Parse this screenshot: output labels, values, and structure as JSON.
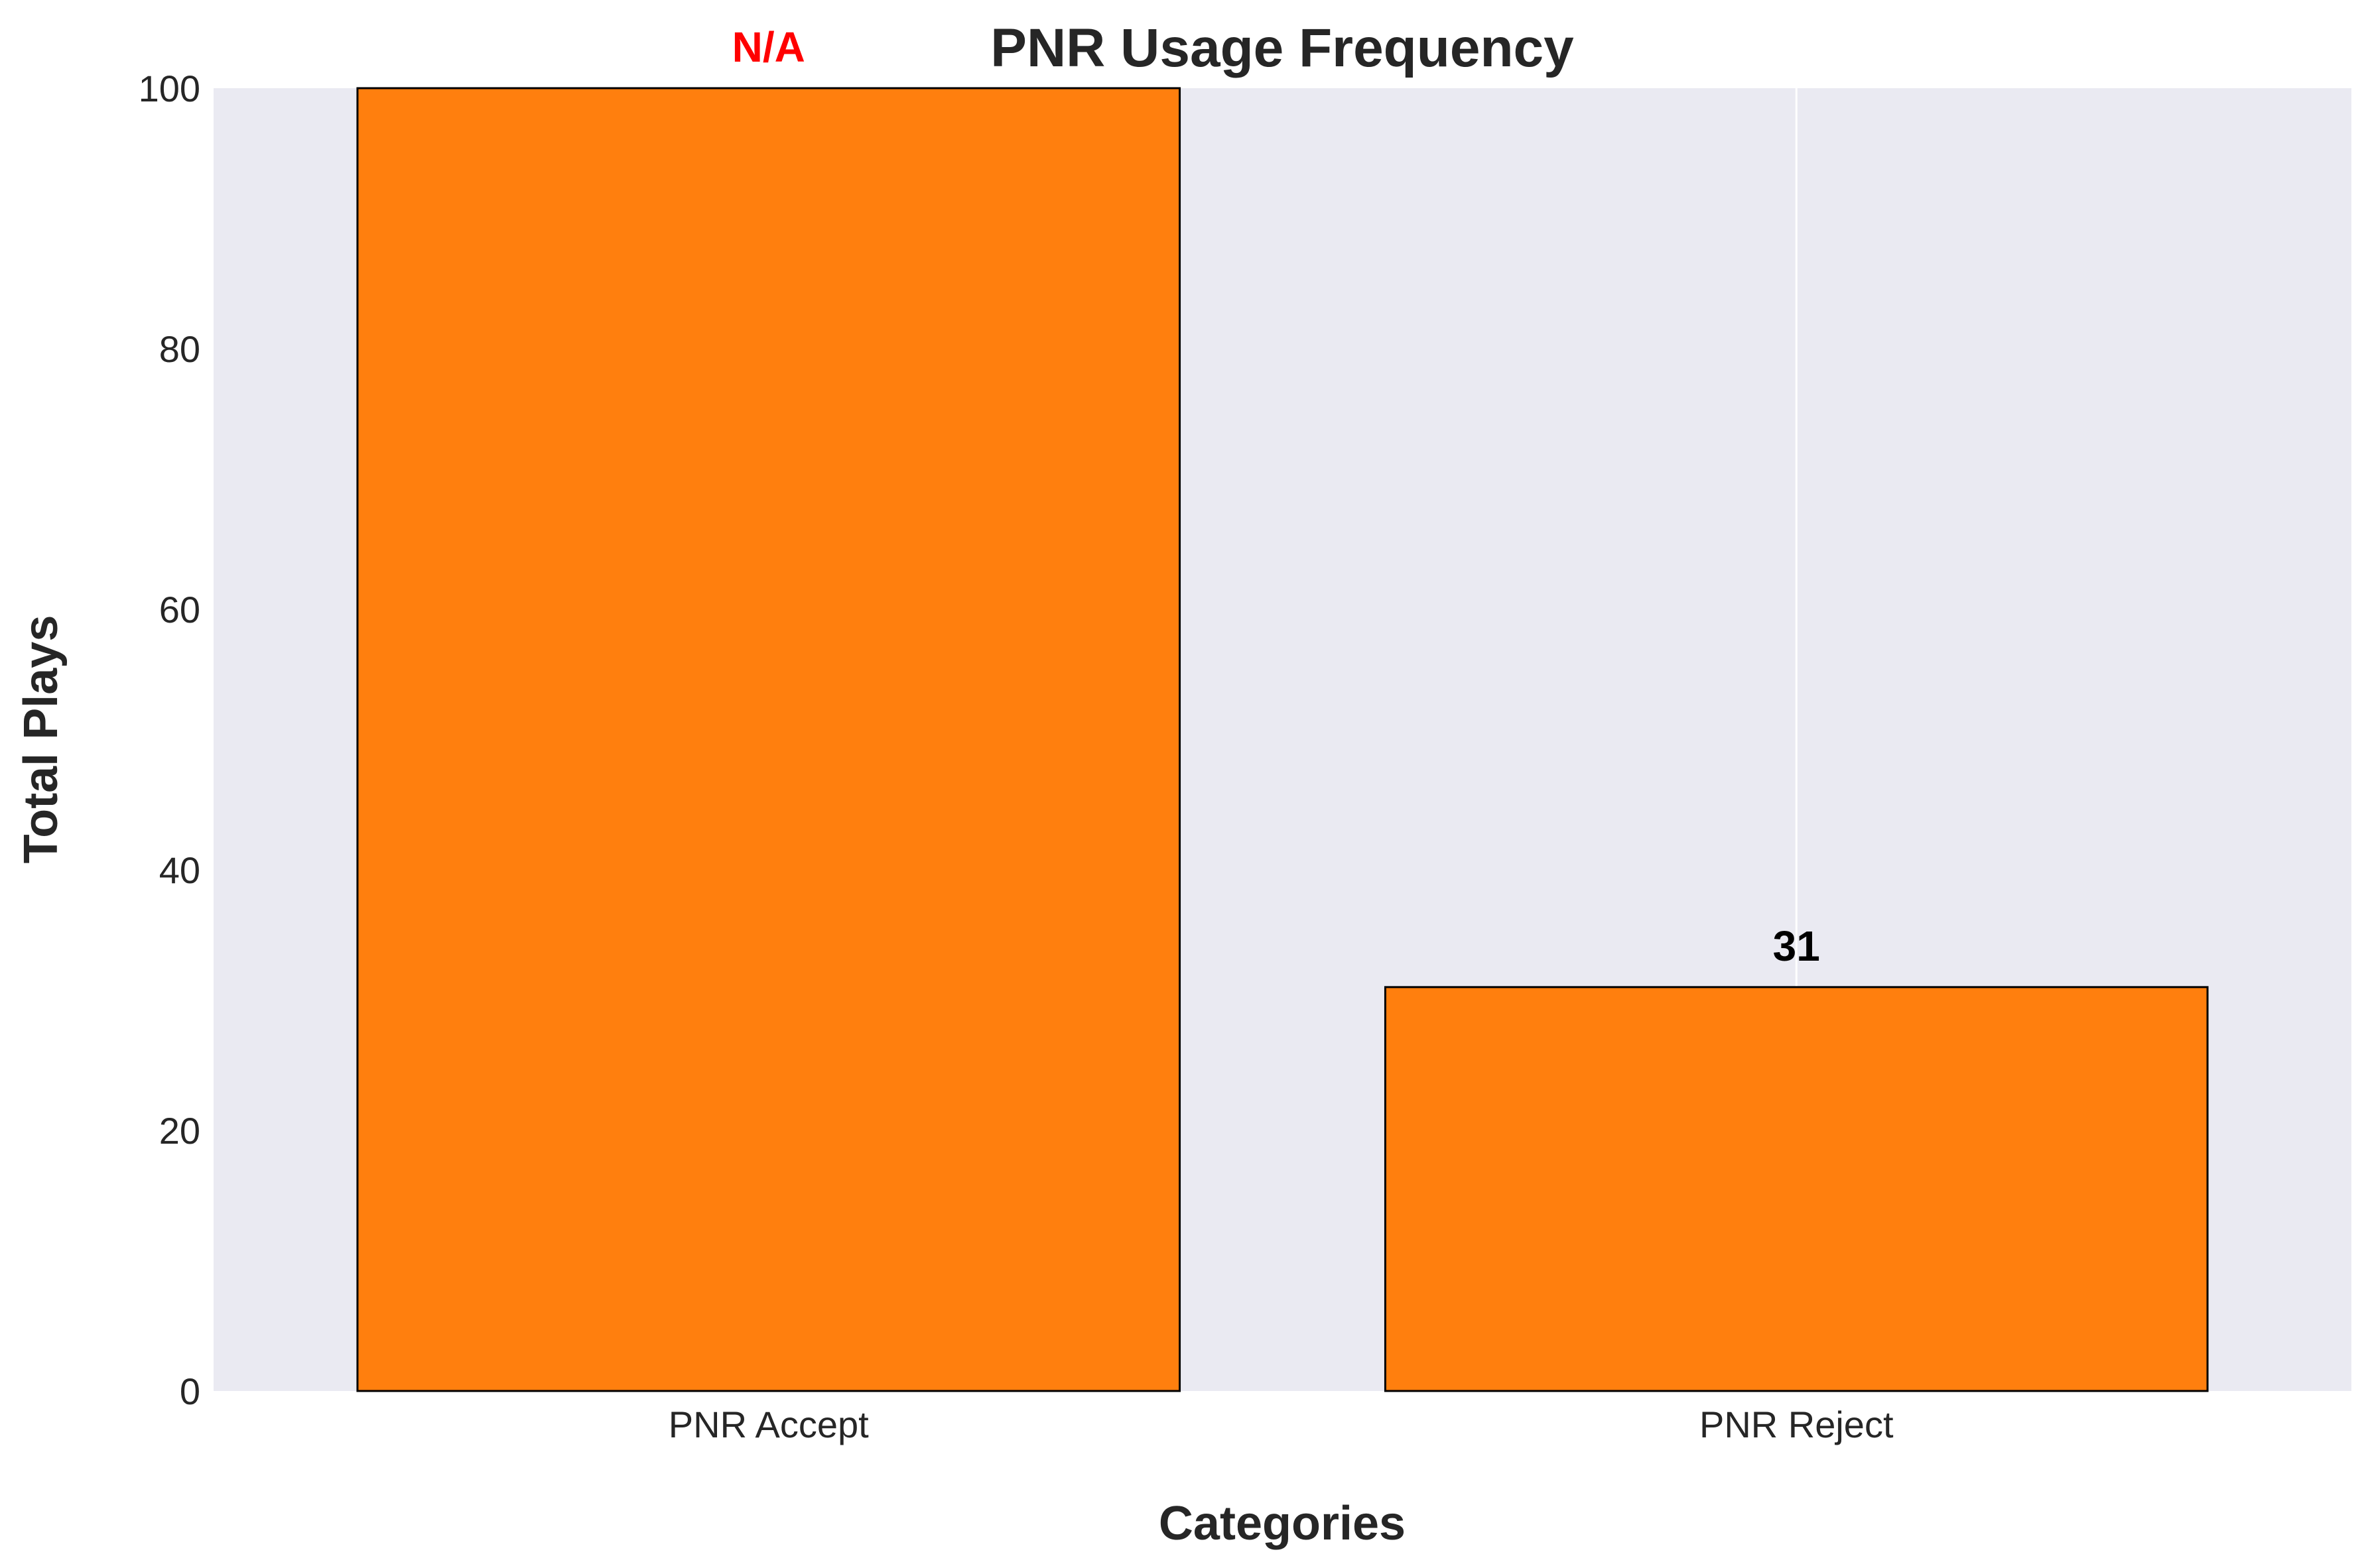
{
  "chart_data": {
    "type": "bar",
    "title": "PNR Usage Frequency",
    "xlabel": "Categories",
    "ylabel": "Total Plays",
    "categories": [
      "PNR Accept",
      "PNR Reject"
    ],
    "values": [
      100,
      31
    ],
    "bar_labels": [
      "N/A",
      "31"
    ],
    "bar_label_colors": [
      "#ff0000",
      "#000000"
    ],
    "ylim": [
      0,
      100
    ],
    "yticks": [
      "0",
      "20",
      "40",
      "60",
      "80",
      "100"
    ],
    "grid": true,
    "colors": {
      "bar": "#ff7f0e",
      "bar_edge": "#000000",
      "plot_background": "#eaeaf2",
      "grid": "#ffffff"
    }
  }
}
